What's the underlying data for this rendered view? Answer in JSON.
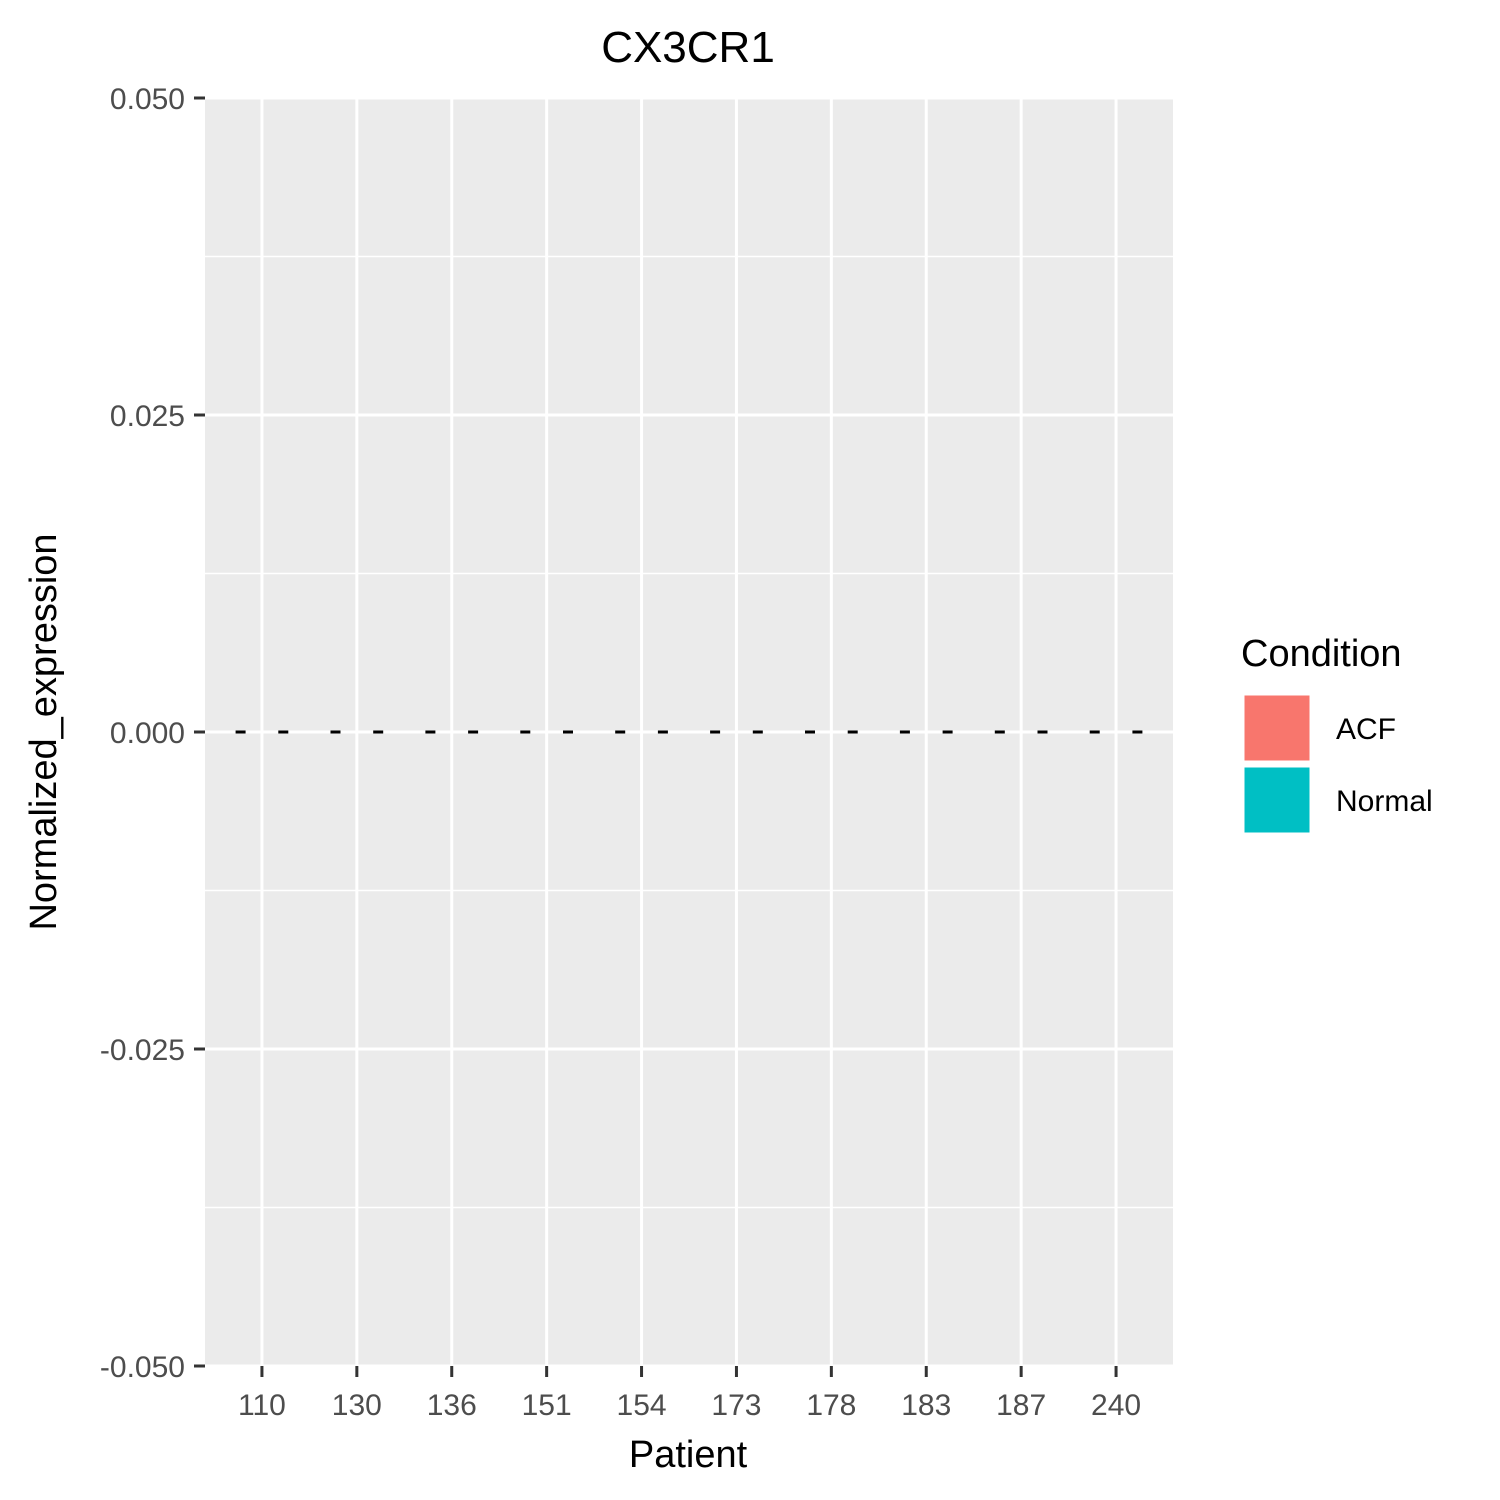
{
  "chart_data": {
    "type": "bar",
    "title": "CX3CR1",
    "xlabel": "Patient",
    "ylabel": "Normalized_expression",
    "categories": [
      "110",
      "130",
      "136",
      "151",
      "154",
      "173",
      "178",
      "183",
      "187",
      "240"
    ],
    "series": [
      {
        "name": "ACF",
        "color": "#F8766D",
        "values": [
          0,
          0,
          0,
          0,
          0,
          0,
          0,
          0,
          0,
          0
        ]
      },
      {
        "name": "Normal",
        "color": "#00BFC4",
        "values": [
          0,
          0,
          0,
          0,
          0,
          0,
          0,
          0,
          0,
          0
        ]
      }
    ],
    "ylim": [
      -0.05,
      0.05
    ],
    "yticks": [
      "0.050",
      "0.025",
      "0.000",
      "-0.025",
      "-0.050"
    ],
    "ytick_values": [
      0.05,
      0.025,
      0,
      -0.025,
      -0.05
    ],
    "grid": true,
    "legend": {
      "title": "Condition",
      "position": "right"
    },
    "panel_background": "#EBEBEB",
    "grid_color": "#FFFFFF"
  }
}
